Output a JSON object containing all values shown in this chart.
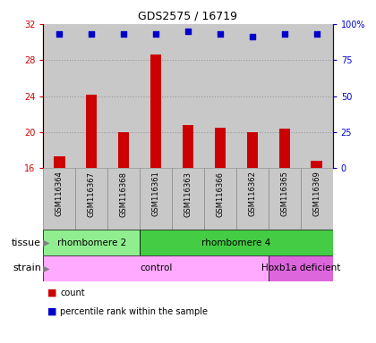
{
  "title": "GDS2575 / 16719",
  "samples": [
    "GSM116364",
    "GSM116367",
    "GSM116368",
    "GSM116361",
    "GSM116363",
    "GSM116366",
    "GSM116362",
    "GSM116365",
    "GSM116369"
  ],
  "counts": [
    17.3,
    24.2,
    20.0,
    28.6,
    20.8,
    20.5,
    20.0,
    20.4,
    16.8
  ],
  "percentile_ranks": [
    93,
    93,
    93,
    93,
    95,
    93,
    91,
    93,
    93
  ],
  "ylim_left": [
    16,
    32
  ],
  "yticks_left": [
    16,
    20,
    24,
    28,
    32
  ],
  "ylim_right": [
    0,
    100
  ],
  "yticks_right": [
    0,
    25,
    50,
    75,
    100
  ],
  "tissue_groups": [
    {
      "label": "rhombomere 2",
      "start": 0,
      "end": 3,
      "color": "#90EE90"
    },
    {
      "label": "rhombomere 4",
      "start": 3,
      "end": 9,
      "color": "#44CC44"
    }
  ],
  "strain_groups": [
    {
      "label": "control",
      "start": 0,
      "end": 7,
      "color": "#FFAAFF"
    },
    {
      "label": "Hoxb1a deficient",
      "start": 7,
      "end": 9,
      "color": "#DD66DD"
    }
  ],
  "bar_color": "#CC0000",
  "marker_color": "#0000CC",
  "bg_color": "#C8C8C8",
  "left_axis_color": "#CC0000",
  "right_axis_color": "#0000CC",
  "grid_dotted_color": "#999999"
}
